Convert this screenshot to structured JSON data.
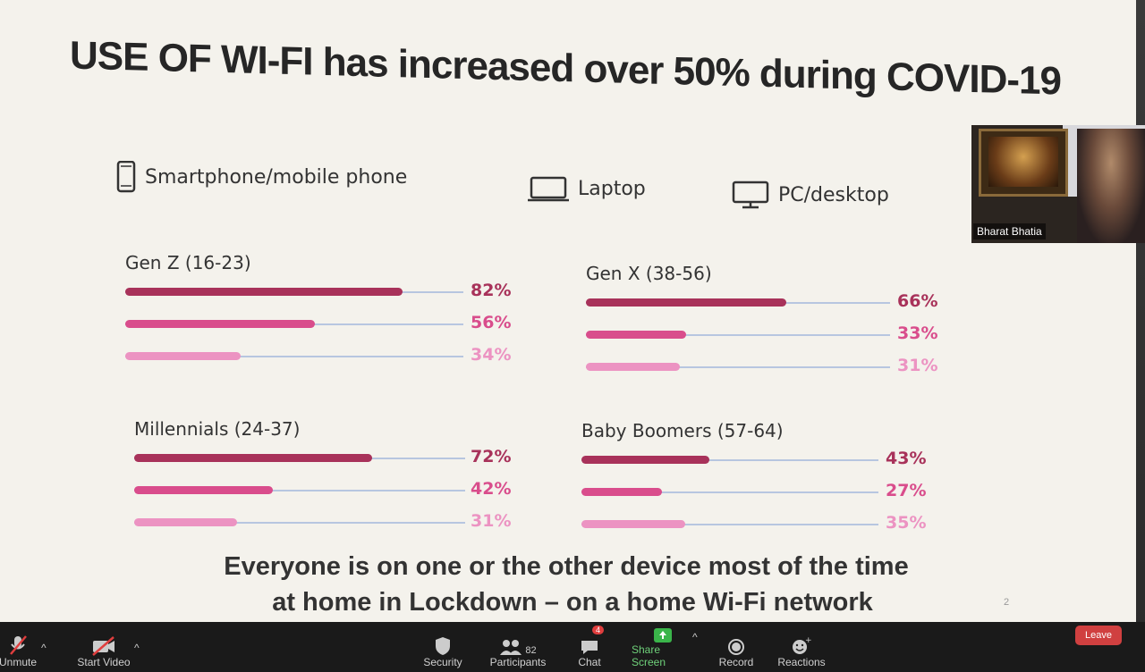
{
  "slide": {
    "title": "USE OF WI-FI has increased over 50% during COVID-19",
    "legend": {
      "smartphone": "Smartphone/mobile phone",
      "laptop": "Laptop",
      "pc": "PC/desktop"
    },
    "footer_line1": "Everyone is on one or the other device most of the time",
    "footer_line2": "at home in Lockdown – on a home Wi-Fi network",
    "page_number": "2"
  },
  "colors": {
    "smartphone": "#a8325a",
    "laptop": "#d94d8c",
    "pc": "#ec93c2",
    "track": "#b7c6e0"
  },
  "chart_data": [
    {
      "type": "bar",
      "title": "Gen Z (16-23)",
      "categories": [
        "Smartphone/mobile phone",
        "Laptop",
        "PC/desktop"
      ],
      "values": [
        82,
        56,
        34
      ],
      "labels": [
        "82%",
        "56%",
        "34%"
      ]
    },
    {
      "type": "bar",
      "title": "Gen X (38-56)",
      "categories": [
        "Smartphone/mobile phone",
        "Laptop",
        "PC/desktop"
      ],
      "values": [
        66,
        33,
        31
      ],
      "labels": [
        "66%",
        "33%",
        "31%"
      ]
    },
    {
      "type": "bar",
      "title": "Millennials (24-37)",
      "categories": [
        "Smartphone/mobile phone",
        "Laptop",
        "PC/desktop"
      ],
      "values": [
        72,
        42,
        31
      ],
      "labels": [
        "72%",
        "42%",
        "31%"
      ]
    },
    {
      "type": "bar",
      "title": "Baby Boomers (57-64)",
      "categories": [
        "Smartphone/mobile phone",
        "Laptop",
        "PC/desktop"
      ],
      "values": [
        43,
        27,
        35
      ],
      "labels": [
        "43%",
        "27%",
        "35%"
      ]
    }
  ],
  "video": {
    "participant_name": "Bharat Bhatia"
  },
  "toolbar": {
    "unmute": "Unmute",
    "start_video": "Start Video",
    "security": "Security",
    "participants": "Participants",
    "participants_count": "82",
    "chat": "Chat",
    "chat_badge": "4",
    "share_screen": "Share Screen",
    "record": "Record",
    "reactions": "Reactions",
    "leave": "Leave"
  }
}
